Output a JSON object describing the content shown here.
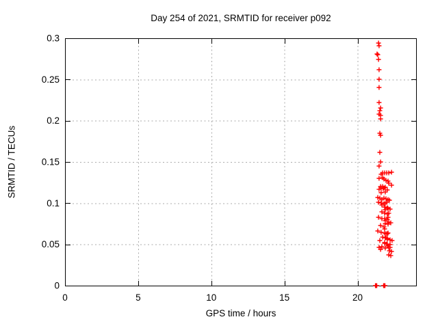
{
  "page": {
    "background": "#ffffff"
  },
  "chart_data": {
    "type": "scatter",
    "title": "Day 254 of 2021, SRMTID for receiver p092",
    "xlabel": "GPS time / hours",
    "ylabel": "SRMTID / TECUs",
    "xlim": [
      0,
      24
    ],
    "ylim": [
      0,
      0.3
    ],
    "xticks": [
      0,
      5,
      10,
      15,
      20
    ],
    "xtick_labels": [
      "0",
      "5",
      "10",
      "15",
      "20"
    ],
    "yticks": [
      0,
      0.05,
      0.1,
      0.15,
      0.2,
      0.25,
      0.3
    ],
    "ytick_labels": [
      "0",
      "0.05",
      "0.1",
      "0.15",
      "0.2",
      "0.25",
      "0.3"
    ],
    "grid": true,
    "grid_style": "dashed",
    "legend_position": "none",
    "marker": "plus",
    "marker_color": "#ff0000",
    "grid_color": "#aaaaaa",
    "axis_color": "#000000",
    "series": [
      {
        "name": "SRMTID",
        "points": [
          [
            21.43,
            0.2942
          ],
          [
            21.47,
            0.2909
          ],
          [
            21.33,
            0.2809
          ],
          [
            21.38,
            0.2801
          ],
          [
            21.43,
            0.2743
          ],
          [
            21.47,
            0.2619
          ],
          [
            21.47,
            0.2503
          ],
          [
            21.47,
            0.2403
          ],
          [
            21.47,
            0.2221
          ],
          [
            21.57,
            0.2155
          ],
          [
            21.52,
            0.2122
          ],
          [
            21.47,
            0.208
          ],
          [
            21.57,
            0.2064
          ],
          [
            21.57,
            0.2022
          ],
          [
            21.52,
            0.1848
          ],
          [
            21.57,
            0.1823
          ],
          [
            21.52,
            0.1616
          ],
          [
            21.57,
            0.15
          ],
          [
            21.47,
            0.145
          ],
          [
            21.71,
            0.1367
          ],
          [
            21.85,
            0.1367
          ],
          [
            21.99,
            0.1367
          ],
          [
            22.13,
            0.1367
          ],
          [
            22.32,
            0.1376
          ],
          [
            21.61,
            0.1351
          ],
          [
            21.47,
            0.1301
          ],
          [
            21.71,
            0.1309
          ],
          [
            21.8,
            0.1293
          ],
          [
            21.94,
            0.1276
          ],
          [
            22.08,
            0.1268
          ],
          [
            22.13,
            0.1243
          ],
          [
            22.32,
            0.1218
          ],
          [
            21.57,
            0.1202
          ],
          [
            21.71,
            0.1202
          ],
          [
            21.61,
            0.1185
          ],
          [
            21.8,
            0.1185
          ],
          [
            21.89,
            0.1193
          ],
          [
            21.47,
            0.1168
          ],
          [
            21.75,
            0.1177
          ],
          [
            22.03,
            0.116
          ],
          [
            21.61,
            0.1127
          ],
          [
            21.89,
            0.1135
          ],
          [
            21.38,
            0.1069
          ],
          [
            21.52,
            0.1061
          ],
          [
            21.66,
            0.1044
          ],
          [
            21.8,
            0.1061
          ],
          [
            21.94,
            0.1053
          ],
          [
            22.08,
            0.1044
          ],
          [
            22.18,
            0.1036
          ],
          [
            21.43,
            0.1011
          ],
          [
            21.61,
            0.1003
          ],
          [
            21.8,
            0.0994
          ],
          [
            21.99,
            0.1011
          ],
          [
            21.89,
            0.0994
          ],
          [
            21.66,
            0.0978
          ],
          [
            21.85,
            0.0953
          ],
          [
            22.03,
            0.0945
          ],
          [
            22.22,
            0.0928
          ],
          [
            22.08,
            0.0936
          ],
          [
            21.89,
            0.092
          ],
          [
            21.66,
            0.0895
          ],
          [
            21.85,
            0.0878
          ],
          [
            22.03,
            0.087
          ],
          [
            22.13,
            0.0878
          ],
          [
            21.43,
            0.0829
          ],
          [
            21.66,
            0.0812
          ],
          [
            22.08,
            0.0829
          ],
          [
            21.85,
            0.0812
          ],
          [
            22.03,
            0.0804
          ],
          [
            21.89,
            0.0787
          ],
          [
            22.13,
            0.0771
          ],
          [
            22.27,
            0.0762
          ],
          [
            21.89,
            0.0754
          ],
          [
            22.08,
            0.0746
          ],
          [
            21.57,
            0.0729
          ],
          [
            21.8,
            0.0713
          ],
          [
            21.85,
            0.0688
          ],
          [
            21.38,
            0.0663
          ],
          [
            21.61,
            0.0646
          ],
          [
            21.85,
            0.0638
          ],
          [
            22.03,
            0.063
          ],
          [
            21.94,
            0.063
          ],
          [
            22.08,
            0.0638
          ],
          [
            21.71,
            0.0588
          ],
          [
            21.94,
            0.058
          ],
          [
            21.89,
            0.058
          ],
          [
            22.03,
            0.0572
          ],
          [
            21.52,
            0.0547
          ],
          [
            22.03,
            0.0564
          ],
          [
            22.22,
            0.0555
          ],
          [
            22.36,
            0.0547
          ],
          [
            21.85,
            0.0514
          ],
          [
            22.03,
            0.0505
          ],
          [
            22.22,
            0.0497
          ],
          [
            21.85,
            0.0522
          ],
          [
            21.99,
            0.0505
          ],
          [
            21.47,
            0.0464
          ],
          [
            21.66,
            0.0472
          ],
          [
            22.08,
            0.0481
          ],
          [
            22.22,
            0.0464
          ],
          [
            21.89,
            0.0456
          ],
          [
            22.13,
            0.0464
          ],
          [
            21.57,
            0.0439
          ],
          [
            22.18,
            0.0423
          ],
          [
            22.32,
            0.0414
          ],
          [
            22.13,
            0.0373
          ],
          [
            22.27,
            0.0364
          ],
          [
            21.22,
            0.0
          ],
          [
            21.26,
            0.0
          ],
          [
            21.31,
            0.0
          ],
          [
            21.78,
            0.0
          ],
          [
            21.82,
            0.0
          ],
          [
            21.87,
            0.0
          ]
        ]
      }
    ]
  }
}
